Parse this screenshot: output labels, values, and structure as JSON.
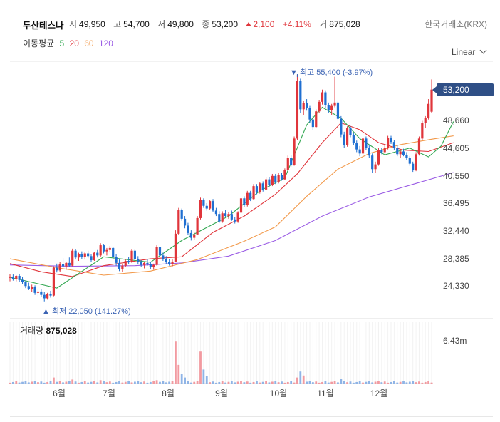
{
  "header": {
    "name": "두산테스나",
    "open_label": "시",
    "open": "49,950",
    "high_label": "고",
    "high": "54,700",
    "low_label": "저",
    "low": "49,800",
    "close_label": "종",
    "close": "53,200",
    "change": "2,100",
    "change_pct": "+4.11%",
    "volume_label": "거",
    "volume": "875,028",
    "exchange": "한국거래소(KRX)"
  },
  "ma_legend": {
    "label": "이동평균",
    "items": [
      {
        "period": "5",
        "color": "#34a853"
      },
      {
        "period": "20",
        "color": "#e0353b"
      },
      {
        "period": "60",
        "color": "#f2994a"
      },
      {
        "period": "120",
        "color": "#9b5de5"
      }
    ]
  },
  "scale_selector": "Linear",
  "current_price_tag": "53,200",
  "colors": {
    "up": "#e0353b",
    "down": "#1f6fd1",
    "accent": "#2f4f86"
  },
  "chart_data": {
    "type": "candlestick",
    "y_ticks": [
      "24,330",
      "28,385",
      "32,440",
      "36,495",
      "40,550",
      "44,605",
      "48,660"
    ],
    "x_ticks": [
      "6월",
      "7월",
      "8월",
      "9월",
      "10월",
      "11월",
      "12월"
    ],
    "ylim": [
      20000,
      58000
    ],
    "max_annotation": "▼ 최고 55,400 (-3.97%)",
    "min_annotation": "▲ 최저 22,050 (141.27%)",
    "candles": [
      [
        25500,
        26100,
        25000,
        25700
      ],
      [
        25700,
        26000,
        25100,
        25300
      ],
      [
        25300,
        25900,
        25000,
        25800
      ],
      [
        25800,
        26100,
        24900,
        25200
      ],
      [
        25200,
        25600,
        24600,
        24900
      ],
      [
        24900,
        25100,
        24000,
        24300
      ],
      [
        24300,
        24800,
        23700,
        23900
      ],
      [
        23900,
        24500,
        23400,
        24200
      ],
      [
        24200,
        24400,
        23000,
        23300
      ],
      [
        23300,
        23900,
        22800,
        23500
      ],
      [
        23500,
        23800,
        22700,
        23000
      ],
      [
        23000,
        23400,
        22050,
        22500
      ],
      [
        22500,
        23300,
        22300,
        23100
      ],
      [
        23100,
        23600,
        22600,
        22900
      ],
      [
        22900,
        27200,
        22800,
        27000
      ],
      [
        27000,
        27600,
        26300,
        26600
      ],
      [
        26600,
        27800,
        26400,
        27500
      ],
      [
        27500,
        28400,
        27000,
        27200
      ],
      [
        27200,
        27900,
        26700,
        27700
      ],
      [
        27700,
        28500,
        27100,
        27300
      ],
      [
        27300,
        29800,
        27200,
        29500
      ],
      [
        29500,
        29700,
        28200,
        28500
      ],
      [
        28500,
        29200,
        28000,
        29000
      ],
      [
        29000,
        29400,
        28300,
        28600
      ],
      [
        28600,
        29300,
        28200,
        29100
      ],
      [
        29100,
        29500,
        28400,
        28700
      ],
      [
        28700,
        29000,
        27800,
        28100
      ],
      [
        28100,
        29300,
        28000,
        29200
      ],
      [
        29200,
        29600,
        28500,
        28800
      ],
      [
        28800,
        30600,
        28600,
        30300
      ],
      [
        30300,
        30500,
        29100,
        29400
      ],
      [
        29400,
        29900,
        28800,
        29600
      ],
      [
        29600,
        30200,
        29300,
        29900
      ],
      [
        29900,
        30100,
        28300,
        28600
      ],
      [
        28600,
        29000,
        27300,
        27700
      ],
      [
        27700,
        28200,
        26500,
        26800
      ],
      [
        26800,
        27500,
        26400,
        27300
      ],
      [
        27300,
        28300,
        27100,
        28000
      ],
      [
        28000,
        28600,
        27500,
        27800
      ],
      [
        27800,
        29700,
        27700,
        29500
      ],
      [
        29500,
        29700,
        28100,
        28300
      ],
      [
        28300,
        28700,
        27500,
        27800
      ],
      [
        27800,
        28100,
        27100,
        27400
      ],
      [
        27400,
        27900,
        26900,
        27700
      ],
      [
        27700,
        28300,
        27300,
        27500
      ],
      [
        27500,
        27800,
        26800,
        27100
      ],
      [
        27100,
        27600,
        26700,
        27400
      ],
      [
        27400,
        30300,
        27300,
        30000
      ],
      [
        30000,
        30200,
        28500,
        28800
      ],
      [
        28800,
        29200,
        28000,
        28300
      ],
      [
        28300,
        28700,
        27500,
        27800
      ],
      [
        27800,
        28300,
        27300,
        27500
      ],
      [
        27500,
        28200,
        27200,
        27900
      ],
      [
        27900,
        32500,
        27800,
        32000
      ],
      [
        32000,
        35800,
        31800,
        35500
      ],
      [
        35500,
        35700,
        33900,
        34200
      ],
      [
        34200,
        34600,
        32800,
        33200
      ],
      [
        33200,
        33600,
        31800,
        32100
      ],
      [
        32100,
        32500,
        31000,
        31400
      ],
      [
        31400,
        32200,
        31100,
        31900
      ],
      [
        31900,
        34600,
        31800,
        34300
      ],
      [
        34300,
        37300,
        34100,
        37000
      ],
      [
        37000,
        37200,
        35800,
        36100
      ],
      [
        36100,
        36500,
        35400,
        35700
      ],
      [
        35700,
        37000,
        35500,
        36800
      ],
      [
        36800,
        37100,
        35200,
        35400
      ],
      [
        35400,
        35800,
        34600,
        34900
      ],
      [
        34900,
        35300,
        33600,
        33800
      ],
      [
        33800,
        35300,
        33600,
        35000
      ],
      [
        35000,
        35500,
        34400,
        34600
      ],
      [
        34600,
        35200,
        34200,
        34900
      ],
      [
        34900,
        35400,
        33900,
        34100
      ],
      [
        34100,
        34500,
        33500,
        33800
      ],
      [
        33800,
        35300,
        33600,
        35100
      ],
      [
        35100,
        37500,
        35000,
        37200
      ],
      [
        37200,
        37500,
        35900,
        36200
      ],
      [
        36200,
        38300,
        36000,
        38000
      ],
      [
        38000,
        38300,
        36800,
        37100
      ],
      [
        37100,
        39300,
        37000,
        39000
      ],
      [
        39000,
        39300,
        37800,
        38100
      ],
      [
        38100,
        39600,
        37900,
        39400
      ],
      [
        39400,
        39700,
        38200,
        38500
      ],
      [
        38500,
        40300,
        38400,
        40000
      ],
      [
        40000,
        40300,
        38800,
        39200
      ],
      [
        39200,
        40800,
        39000,
        40500
      ],
      [
        40500,
        40800,
        39300,
        39600
      ],
      [
        39600,
        40900,
        39400,
        40600
      ],
      [
        40600,
        41000,
        39800,
        40000
      ],
      [
        40000,
        41600,
        39900,
        41400
      ],
      [
        41400,
        43500,
        41300,
        43200
      ],
      [
        43200,
        43500,
        41900,
        42100
      ],
      [
        42100,
        46300,
        42000,
        46000
      ],
      [
        46000,
        55400,
        45800,
        54500
      ],
      [
        54500,
        54800,
        49800,
        50300
      ],
      [
        50300,
        51600,
        49500,
        51200
      ],
      [
        51200,
        51800,
        50100,
        50500
      ],
      [
        50500,
        50800,
        48300,
        48800
      ],
      [
        48800,
        49300,
        47200,
        47700
      ],
      [
        47700,
        50300,
        47500,
        50000
      ],
      [
        50000,
        51700,
        49800,
        51400
      ],
      [
        51400,
        53200,
        51000,
        52800
      ],
      [
        52800,
        53100,
        50500,
        50900
      ],
      [
        50900,
        51300,
        49800,
        50200
      ],
      [
        50200,
        51100,
        49500,
        50800
      ],
      [
        50800,
        55100,
        50600,
        51300
      ],
      [
        51300,
        51600,
        48600,
        48900
      ],
      [
        48900,
        49300,
        46200,
        46600
      ],
      [
        46600,
        47000,
        44600,
        45000
      ],
      [
        45000,
        47800,
        44800,
        47500
      ],
      [
        47500,
        47800,
        46200,
        46500
      ],
      [
        46500,
        46900,
        45000,
        45300
      ],
      [
        45300,
        45700,
        44000,
        44400
      ],
      [
        44400,
        44900,
        43400,
        43800
      ],
      [
        43800,
        46300,
        43600,
        46000
      ],
      [
        46000,
        46300,
        44300,
        44600
      ],
      [
        44600,
        45000,
        43200,
        43500
      ],
      [
        43500,
        43800,
        41000,
        41500
      ],
      [
        41500,
        42600,
        41000,
        42200
      ],
      [
        42200,
        44600,
        42000,
        44300
      ],
      [
        44300,
        44600,
        43700,
        44000
      ],
      [
        44000,
        45000,
        43800,
        44600
      ],
      [
        44600,
        46400,
        44400,
        46100
      ],
      [
        46100,
        46400,
        45200,
        45500
      ],
      [
        45500,
        45800,
        44300,
        44600
      ],
      [
        44600,
        45000,
        43400,
        43700
      ],
      [
        43700,
        44400,
        43200,
        44100
      ],
      [
        44100,
        44500,
        43400,
        43600
      ],
      [
        43600,
        44000,
        42800,
        43100
      ],
      [
        43100,
        43400,
        42000,
        42300
      ],
      [
        42300,
        42600,
        41100,
        41400
      ],
      [
        41400,
        44000,
        41200,
        43700
      ],
      [
        43700,
        46300,
        43500,
        46000
      ],
      [
        46000,
        48600,
        45800,
        48300
      ],
      [
        48300,
        49300,
        47600,
        49000
      ],
      [
        49000,
        51800,
        48800,
        51100
      ],
      [
        49950,
        54700,
        49800,
        53200
      ]
    ],
    "ma": {
      "ma5": [
        [
          0,
          25600
        ],
        [
          15,
          24000
        ],
        [
          30,
          28600
        ],
        [
          45,
          27800
        ],
        [
          55,
          31000
        ],
        [
          70,
          34600
        ],
        [
          80,
          38300
        ],
        [
          88,
          40200
        ],
        [
          95,
          48000
        ],
        [
          100,
          50600
        ],
        [
          106,
          49000
        ],
        [
          112,
          46000
        ],
        [
          120,
          43600
        ],
        [
          128,
          44600
        ],
        [
          134,
          43300
        ],
        [
          138,
          44900
        ],
        [
          142,
          48500
        ]
      ],
      "ma20": [
        [
          0,
          27600
        ],
        [
          10,
          26400
        ],
        [
          20,
          25700
        ],
        [
          30,
          27300
        ],
        [
          45,
          28300
        ],
        [
          55,
          28600
        ],
        [
          65,
          32200
        ],
        [
          75,
          34600
        ],
        [
          85,
          37800
        ],
        [
          92,
          40800
        ],
        [
          100,
          45400
        ],
        [
          106,
          48300
        ],
        [
          112,
          47300
        ],
        [
          118,
          45400
        ],
        [
          126,
          44300
        ],
        [
          134,
          44100
        ],
        [
          142,
          45400
        ]
      ],
      "ma60": [
        [
          0,
          28300
        ],
        [
          15,
          27000
        ],
        [
          30,
          25900
        ],
        [
          45,
          26500
        ],
        [
          60,
          28200
        ],
        [
          75,
          30900
        ],
        [
          85,
          33000
        ],
        [
          95,
          37500
        ],
        [
          105,
          41500
        ],
        [
          115,
          43800
        ],
        [
          125,
          45100
        ],
        [
          135,
          45900
        ],
        [
          142,
          46400
        ]
      ],
      "ma120": [
        [
          0,
          27400
        ],
        [
          20,
          27200
        ],
        [
          40,
          27300
        ],
        [
          55,
          27700
        ],
        [
          70,
          28700
        ],
        [
          85,
          31000
        ],
        [
          100,
          34600
        ],
        [
          115,
          37400
        ],
        [
          130,
          39400
        ],
        [
          142,
          41000
        ]
      ]
    },
    "volume": {
      "label": "거래량",
      "last": "875,028",
      "tick": "6.43m",
      "max_m": 6.43,
      "spikes": [
        [
          14,
          0.9
        ],
        [
          20,
          0.6
        ],
        [
          29,
          0.5
        ],
        [
          47,
          0.5
        ],
        [
          53,
          6.3
        ],
        [
          54,
          2.8
        ],
        [
          55,
          1.4
        ],
        [
          56,
          0.9
        ],
        [
          61,
          4.8
        ],
        [
          62,
          2.1
        ],
        [
          63,
          1.1
        ],
        [
          92,
          0.9
        ],
        [
          93,
          1.8
        ],
        [
          94,
          1.2
        ],
        [
          106,
          0.7
        ],
        [
          142,
          0.9
        ]
      ]
    }
  }
}
